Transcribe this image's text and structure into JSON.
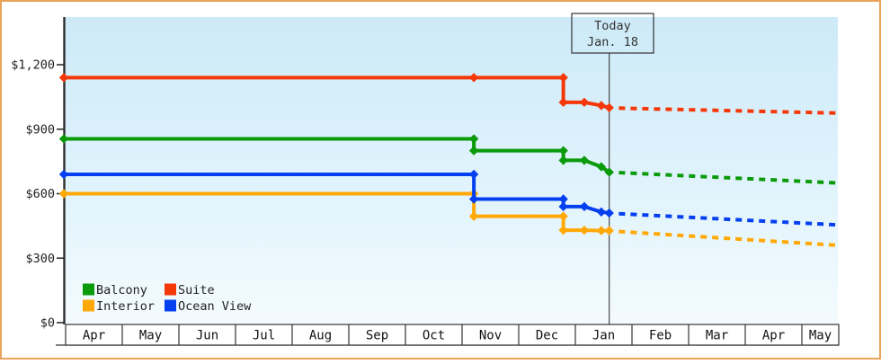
{
  "frame": {
    "border_color": "#e9a45c",
    "background": "#ffffff",
    "plot_gradient_top": "#cdeaf8",
    "plot_gradient_bottom": "#f4fbfe"
  },
  "chart_data": {
    "type": "line",
    "description": "Stepped price-history chart of cruise cabin prices by category with dashed future projection",
    "x_axis": {
      "unit": "months since April 1",
      "months": [
        "Apr",
        "May",
        "Jun",
        "Jul",
        "Aug",
        "Sep",
        "Oct",
        "Nov",
        "Dec",
        "Jan",
        "Feb",
        "Mar",
        "Apr",
        "May"
      ]
    },
    "y_axis": {
      "ticks": [
        {
          "label": "$0",
          "value": 0
        },
        {
          "label": "$300",
          "value": 300
        },
        {
          "label": "$600",
          "value": 600
        },
        {
          "label": "$900",
          "value": 900
        },
        {
          "label": "$1,200",
          "value": 1200
        }
      ],
      "range": [
        0,
        1417
      ]
    },
    "grid": false,
    "today": {
      "line1": "Today",
      "line2": "Jan. 18",
      "x_month": 9.63
    },
    "series": [
      {
        "name": "Interior",
        "color": "#ffa806",
        "points": [
          [
            0,
            600
          ],
          [
            7.24,
            600
          ],
          [
            7.24,
            495
          ],
          [
            8.82,
            495
          ],
          [
            8.82,
            430
          ],
          [
            9.19,
            430
          ],
          [
            9.49,
            428
          ],
          [
            9.63,
            428
          ]
        ],
        "projection": [
          [
            9.8,
            424
          ],
          [
            13.65,
            360
          ]
        ]
      },
      {
        "name": "Ocean View",
        "color": "#0540f0",
        "points": [
          [
            0,
            690
          ],
          [
            7.24,
            690
          ],
          [
            7.24,
            575
          ],
          [
            8.82,
            575
          ],
          [
            8.82,
            540
          ],
          [
            9.19,
            540
          ],
          [
            9.49,
            515
          ],
          [
            9.63,
            510
          ]
        ],
        "projection": [
          [
            9.8,
            507
          ],
          [
            13.65,
            455
          ]
        ]
      },
      {
        "name": "Balcony",
        "color": "#0a9a0a",
        "points": [
          [
            0,
            855
          ],
          [
            7.24,
            855
          ],
          [
            7.24,
            800
          ],
          [
            8.82,
            800
          ],
          [
            8.82,
            755
          ],
          [
            9.19,
            755
          ],
          [
            9.49,
            725
          ],
          [
            9.63,
            700
          ]
        ],
        "projection": [
          [
            9.8,
            698
          ],
          [
            13.65,
            650
          ]
        ]
      },
      {
        "name": "Suite",
        "color": "#f5380a",
        "points": [
          [
            0,
            1140
          ],
          [
            7.24,
            1140
          ],
          [
            8.82,
            1140
          ],
          [
            8.82,
            1025
          ],
          [
            9.19,
            1025
          ],
          [
            9.49,
            1010
          ],
          [
            9.63,
            1000
          ]
        ],
        "projection": [
          [
            9.8,
            998
          ],
          [
            13.65,
            975
          ]
        ]
      }
    ],
    "legend": {
      "position": "bottom-left-inside",
      "rows": [
        [
          "Balcony",
          "Suite"
        ],
        [
          "Interior",
          "Ocean View"
        ]
      ]
    }
  }
}
